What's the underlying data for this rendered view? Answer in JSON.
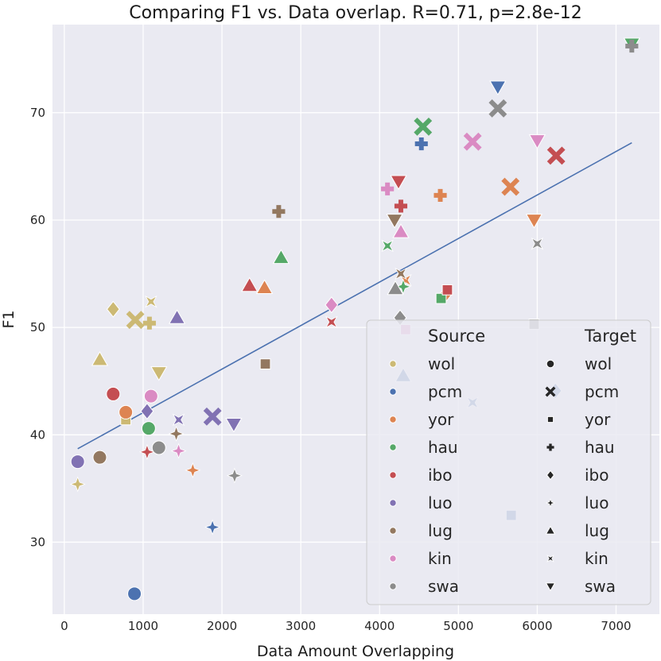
{
  "chart_data": {
    "type": "scatter",
    "title": "Comparing F1 vs. Data overlap. R=0.71, p=2.8e-12",
    "xlabel": "Data Amount Overlapping",
    "ylabel": "F1",
    "xlim": [
      -150,
      7550
    ],
    "ylim": [
      23.3,
      78.2
    ],
    "xticks": [
      0,
      1000,
      2000,
      3000,
      4000,
      5000,
      6000,
      7000
    ],
    "yticks": [
      30,
      40,
      50,
      60,
      70
    ],
    "regression": {
      "x": [
        170,
        7200
      ],
      "y": [
        38.7,
        67.2
      ],
      "color": "#4c72b0"
    },
    "legend": {
      "source_title": "Source",
      "target_title": "Target",
      "sources": [
        {
          "name": "wol",
          "color": "#ccb974"
        },
        {
          "name": "pcm",
          "color": "#4c72b0"
        },
        {
          "name": "yor",
          "color": "#dd8452"
        },
        {
          "name": "hau",
          "color": "#55a868"
        },
        {
          "name": "ibo",
          "color": "#c44e52"
        },
        {
          "name": "luo",
          "color": "#8172b3"
        },
        {
          "name": "lug",
          "color": "#937860"
        },
        {
          "name": "kin",
          "color": "#da8bc3"
        },
        {
          "name": "swa",
          "color": "#8c8c8c"
        }
      ],
      "targets": [
        {
          "name": "wol",
          "marker": "circle"
        },
        {
          "name": "pcm",
          "marker": "x"
        },
        {
          "name": "yor",
          "marker": "square"
        },
        {
          "name": "hau",
          "marker": "plus"
        },
        {
          "name": "ibo",
          "marker": "diamond"
        },
        {
          "name": "luo",
          "marker": "star"
        },
        {
          "name": "lug",
          "marker": "triangle-up"
        },
        {
          "name": "kin",
          "marker": "bowtie"
        },
        {
          "name": "swa",
          "marker": "triangle-down"
        }
      ]
    },
    "points": [
      {
        "source": "wol",
        "target": "luo",
        "x": 170,
        "y": 35.4
      },
      {
        "source": "wol",
        "target": "lug",
        "x": 450,
        "y": 47.0
      },
      {
        "source": "wol",
        "target": "ibo",
        "x": 620,
        "y": 51.7
      },
      {
        "source": "wol",
        "target": "yor",
        "x": 780,
        "y": 41.4
      },
      {
        "source": "wol",
        "target": "pcm",
        "x": 900,
        "y": 50.7
      },
      {
        "source": "wol",
        "target": "hau",
        "x": 1080,
        "y": 50.4
      },
      {
        "source": "wol",
        "target": "kin",
        "x": 1100,
        "y": 52.4
      },
      {
        "source": "wol",
        "target": "swa",
        "x": 1200,
        "y": 45.8
      },
      {
        "source": "pcm",
        "target": "wol",
        "x": 890,
        "y": 25.2
      },
      {
        "source": "pcm",
        "target": "luo",
        "x": 1880,
        "y": 31.4
      },
      {
        "source": "pcm",
        "target": "lug",
        "x": 4300,
        "y": 45.5
      },
      {
        "source": "pcm",
        "target": "kin",
        "x": 5180,
        "y": 43.0
      },
      {
        "source": "pcm",
        "target": "hau",
        "x": 4530,
        "y": 67.1
      },
      {
        "source": "pcm",
        "target": "swa",
        "x": 5500,
        "y": 72.4
      },
      {
        "source": "pcm",
        "target": "yor",
        "x": 5670,
        "y": 32.5
      },
      {
        "source": "pcm",
        "target": "ibo",
        "x": 6230,
        "y": 44.1
      },
      {
        "source": "yor",
        "target": "wol",
        "x": 780,
        "y": 42.1
      },
      {
        "source": "yor",
        "target": "luo",
        "x": 1630,
        "y": 36.7
      },
      {
        "source": "yor",
        "target": "lug",
        "x": 2540,
        "y": 53.7
      },
      {
        "source": "yor",
        "target": "kin",
        "x": 4330,
        "y": 54.4
      },
      {
        "source": "yor",
        "target": "hau",
        "x": 4770,
        "y": 62.3
      },
      {
        "source": "yor",
        "target": "ibo",
        "x": 4850,
        "y": 53.2
      },
      {
        "source": "yor",
        "target": "pcm",
        "x": 5660,
        "y": 63.1
      },
      {
        "source": "yor",
        "target": "swa",
        "x": 5960,
        "y": 60.0
      },
      {
        "source": "hau",
        "target": "wol",
        "x": 1070,
        "y": 40.6
      },
      {
        "source": "hau",
        "target": "lug",
        "x": 2750,
        "y": 56.5
      },
      {
        "source": "hau",
        "target": "kin",
        "x": 4100,
        "y": 57.6
      },
      {
        "source": "hau",
        "target": "luo",
        "x": 4300,
        "y": 53.8
      },
      {
        "source": "hau",
        "target": "pcm",
        "x": 4550,
        "y": 68.7
      },
      {
        "source": "hau",
        "target": "yor",
        "x": 4780,
        "y": 52.7
      },
      {
        "source": "hau",
        "target": "swa",
        "x": 7200,
        "y": 76.4
      },
      {
        "source": "ibo",
        "target": "wol",
        "x": 620,
        "y": 43.8
      },
      {
        "source": "ibo",
        "target": "luo",
        "x": 1050,
        "y": 38.4
      },
      {
        "source": "ibo",
        "target": "lug",
        "x": 2350,
        "y": 53.9
      },
      {
        "source": "ibo",
        "target": "kin",
        "x": 3390,
        "y": 50.5
      },
      {
        "source": "ibo",
        "target": "swa",
        "x": 4240,
        "y": 63.6
      },
      {
        "source": "ibo",
        "target": "hau",
        "x": 4270,
        "y": 61.3
      },
      {
        "source": "ibo",
        "target": "yor",
        "x": 4860,
        "y": 53.5
      },
      {
        "source": "ibo",
        "target": "pcm",
        "x": 6240,
        "y": 66.0
      },
      {
        "source": "luo",
        "target": "wol",
        "x": 170,
        "y": 37.5
      },
      {
        "source": "luo",
        "target": "ibo",
        "x": 1050,
        "y": 42.2
      },
      {
        "source": "luo",
        "target": "lug",
        "x": 1430,
        "y": 50.9
      },
      {
        "source": "luo",
        "target": "kin",
        "x": 1450,
        "y": 41.4
      },
      {
        "source": "luo",
        "target": "pcm",
        "x": 1880,
        "y": 41.7
      },
      {
        "source": "luo",
        "target": "swa",
        "x": 2150,
        "y": 41.0
      },
      {
        "source": "lug",
        "target": "wol",
        "x": 450,
        "y": 37.9
      },
      {
        "source": "lug",
        "target": "luo",
        "x": 1420,
        "y": 40.1
      },
      {
        "source": "lug",
        "target": "yor",
        "x": 2550,
        "y": 46.6
      },
      {
        "source": "lug",
        "target": "hau",
        "x": 2720,
        "y": 60.8
      },
      {
        "source": "lug",
        "target": "swa",
        "x": 4190,
        "y": 60.0
      },
      {
        "source": "lug",
        "target": "kin",
        "x": 4270,
        "y": 55.0
      },
      {
        "source": "kin",
        "target": "wol",
        "x": 1100,
        "y": 43.6
      },
      {
        "source": "kin",
        "target": "luo",
        "x": 1450,
        "y": 38.5
      },
      {
        "source": "kin",
        "target": "ibo",
        "x": 3390,
        "y": 52.1
      },
      {
        "source": "kin",
        "target": "hau",
        "x": 4100,
        "y": 62.9
      },
      {
        "source": "kin",
        "target": "lug",
        "x": 4270,
        "y": 58.9
      },
      {
        "source": "kin",
        "target": "yor",
        "x": 4330,
        "y": 49.8
      },
      {
        "source": "kin",
        "target": "pcm",
        "x": 5180,
        "y": 67.3
      },
      {
        "source": "kin",
        "target": "swa",
        "x": 6000,
        "y": 67.4
      },
      {
        "source": "swa",
        "target": "wol",
        "x": 1200,
        "y": 38.8
      },
      {
        "source": "swa",
        "target": "luo",
        "x": 2160,
        "y": 36.2
      },
      {
        "source": "swa",
        "target": "lug",
        "x": 4200,
        "y": 53.6
      },
      {
        "source": "swa",
        "target": "ibo",
        "x": 4260,
        "y": 50.9
      },
      {
        "source": "swa",
        "target": "yor",
        "x": 5960,
        "y": 50.3
      },
      {
        "source": "swa",
        "target": "pcm",
        "x": 5500,
        "y": 70.4
      },
      {
        "source": "swa",
        "target": "kin",
        "x": 6000,
        "y": 57.8
      },
      {
        "source": "swa",
        "target": "hau",
        "x": 7200,
        "y": 76.2
      }
    ]
  }
}
